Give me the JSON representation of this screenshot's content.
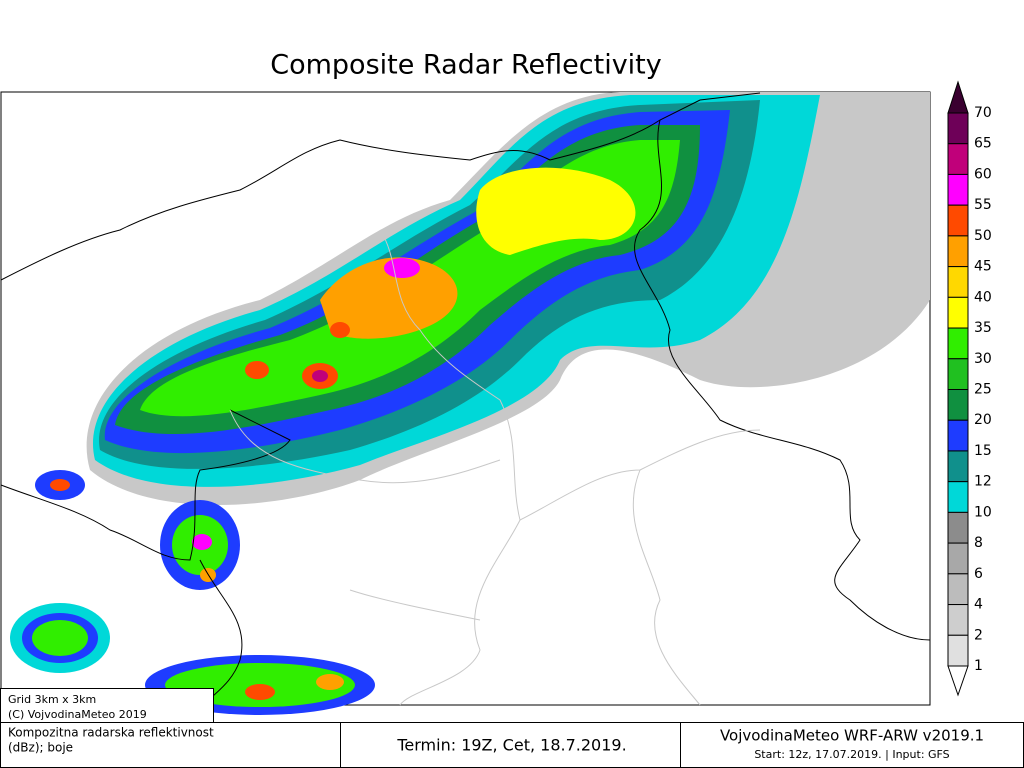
{
  "header": {
    "title": "Composite Radar Reflectivity"
  },
  "colorbar": {
    "labels": [
      "70",
      "65",
      "60",
      "55",
      "50",
      "45",
      "40",
      "35",
      "30",
      "25",
      "20",
      "15",
      "12",
      "10",
      "8",
      "6",
      "4",
      "2",
      "1"
    ],
    "colors": [
      "#3a0030",
      "#6e0058",
      "#c0007a",
      "#ff00ff",
      "#ff4a00",
      "#ffa000",
      "#ffd800",
      "#ffff00",
      "#30ee00",
      "#20c020",
      "#109040",
      "#1e3cff",
      "#10908c",
      "#00d8d8",
      "#8c8c8c",
      "#a8a8a8",
      "#bcbcbc",
      "#cecece",
      "#e0e0e0",
      "#ffffff"
    ]
  },
  "info": {
    "grid": "Grid 3km x 3km",
    "copyright": "(C) VojvodinaMeteo 2019"
  },
  "footer": {
    "description_line1": "Kompozitna radarska reflektivnost",
    "description_line2": "(dBz); boje",
    "termin": "Termin: 19Z, Cet, 18.7.2019.",
    "model": "VojvodinaMeteo WRF-ARW v2019.1",
    "start": "Start: 12z, 17.07.2019. | Input: GFS"
  }
}
